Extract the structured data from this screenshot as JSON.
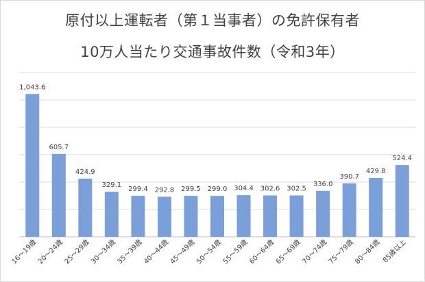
{
  "chart_data": {
    "type": "bar",
    "title": "原付以上運転者（第１当事者）の免許保有者",
    "subtitle": "10万人当たり交通事故件数（令和3年）",
    "categories": [
      "16～19歳",
      "20～24歳",
      "25～29歳",
      "30～34歳",
      "35～39歳",
      "40～44歳",
      "45～49歳",
      "50～54歳",
      "55～59歳",
      "60～64歳",
      "65～69歳",
      "70～74歳",
      "75～79歳",
      "80～84歳",
      "85歳以上"
    ],
    "values": [
      1043.6,
      605.7,
      424.9,
      329.1,
      299.4,
      292.8,
      299.5,
      299.0,
      304.4,
      302.6,
      302.5,
      336.0,
      390.7,
      429.8,
      524.4
    ],
    "data_labels": [
      "1,043.6",
      "605.7",
      "424.9",
      "329.1",
      "299.4",
      "292.8",
      "299.5",
      "299.0",
      "304.4",
      "302.6",
      "302.5",
      "336.0",
      "390.7",
      "429.8",
      "524.4"
    ],
    "ylim": [
      0,
      1200
    ],
    "grid": true,
    "bar_color": "#7a9fd9"
  }
}
